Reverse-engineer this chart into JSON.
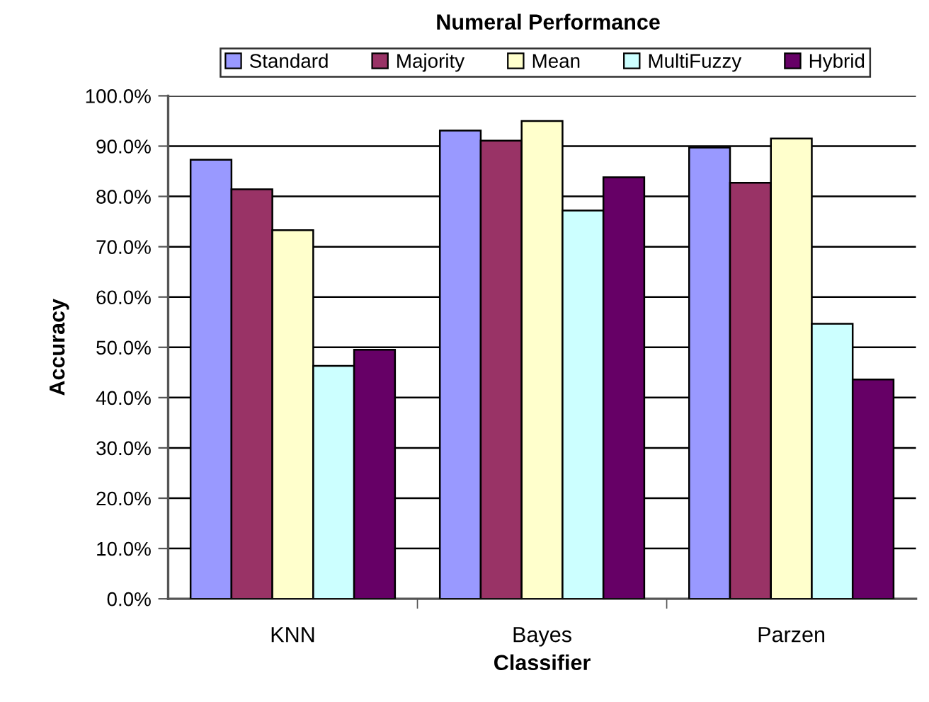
{
  "chart_data": {
    "type": "bar",
    "title": "Numeral Performance",
    "xlabel": "Classifier",
    "ylabel": "Accuracy",
    "categories": [
      "KNN",
      "Bayes",
      "Parzen"
    ],
    "series": [
      {
        "name": "Standard",
        "color": "#9999ff",
        "values": [
          87.3,
          93.1,
          89.7
        ]
      },
      {
        "name": "Majority",
        "color": "#993366",
        "values": [
          81.4,
          91.1,
          82.7
        ]
      },
      {
        "name": "Mean",
        "color": "#ffffcc",
        "values": [
          73.3,
          95.0,
          91.5
        ]
      },
      {
        "name": "MultiFuzzy",
        "color": "#ccffff",
        "values": [
          46.3,
          77.2,
          54.7
        ]
      },
      {
        "name": "Hybrid",
        "color": "#660066",
        "values": [
          49.5,
          83.8,
          43.6
        ]
      }
    ],
    "ylim": [
      0,
      100
    ],
    "yticks": [
      {
        "value": 0,
        "label": "0.0%"
      },
      {
        "value": 10,
        "label": "10.0%"
      },
      {
        "value": 20,
        "label": "20.0%"
      },
      {
        "value": 30,
        "label": "30.0%"
      },
      {
        "value": 40,
        "label": "40.0%"
      },
      {
        "value": 50,
        "label": "50.0%"
      },
      {
        "value": 60,
        "label": "60.0%"
      },
      {
        "value": 70,
        "label": "70.0%"
      },
      {
        "value": 80,
        "label": "80.0%"
      },
      {
        "value": 90,
        "label": "90.0%"
      },
      {
        "value": 100,
        "label": "100.0%"
      }
    ],
    "grid": "y",
    "legend": "top"
  }
}
